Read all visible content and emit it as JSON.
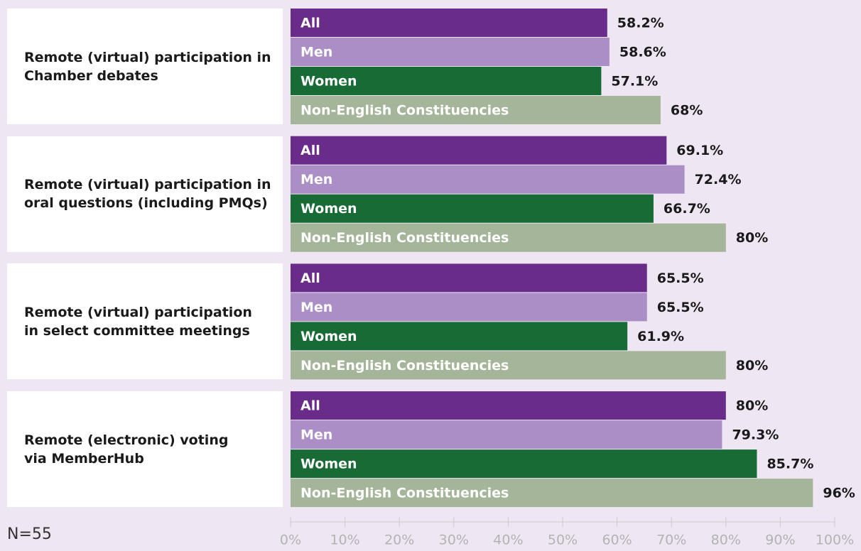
{
  "chart_data": {
    "type": "bar",
    "orientation": "horizontal",
    "categories": [
      "Remote (virtual) participation in\nChamber debates",
      "Remote (virtual) participation in\noral questions (including PMQs)",
      "Remote (virtual) participation\nin select committee meetings",
      "Remote (electronic) voting\nvia MemberHub"
    ],
    "series": [
      {
        "name": "All",
        "color": "#6a2c8a",
        "values": [
          58.2,
          69.1,
          65.5,
          80
        ],
        "value_labels": [
          "58.2%",
          "69.1%",
          "65.5%",
          "80%"
        ]
      },
      {
        "name": "Men",
        "color": "#ab8ec6",
        "values": [
          58.6,
          72.4,
          65.5,
          79.3
        ],
        "value_labels": [
          "58.6%",
          "72.4%",
          "65.5%",
          "79.3%"
        ]
      },
      {
        "name": "Women",
        "color": "#196b35",
        "values": [
          57.1,
          66.7,
          61.9,
          85.7
        ],
        "value_labels": [
          "57.1%",
          "66.7%",
          "61.9%",
          "85.7%"
        ]
      },
      {
        "name": "Non-English Constituencies",
        "color": "#a5b59a",
        "values": [
          68,
          80,
          80,
          96
        ],
        "value_labels": [
          "68%",
          "80%",
          "80%",
          "96%"
        ]
      }
    ],
    "xlim": [
      0,
      100
    ],
    "xticks": [
      {
        "value": 0,
        "label": "0%"
      },
      {
        "value": 10,
        "label": "10%"
      },
      {
        "value": 20,
        "label": "20%"
      },
      {
        "value": 30,
        "label": "30%"
      },
      {
        "value": 40,
        "label": "40%"
      },
      {
        "value": 50,
        "label": "50%"
      },
      {
        "value": 60,
        "label": "60%"
      },
      {
        "value": 70,
        "label": "70%"
      },
      {
        "value": 80,
        "label": "80%"
      },
      {
        "value": 90,
        "label": "90%"
      },
      {
        "value": 100,
        "label": "100%"
      }
    ],
    "annotation": "N=55"
  }
}
